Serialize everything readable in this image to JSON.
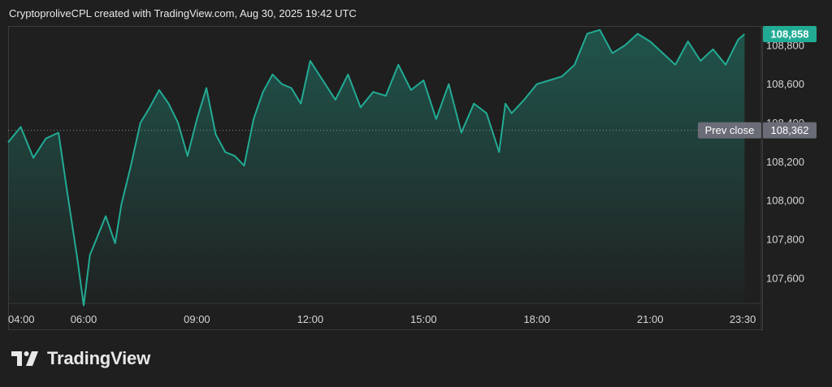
{
  "header": {
    "attribution": "CryptoproliveCPL created with TradingView.com, Aug 30, 2025 19:42 UTC"
  },
  "brand": {
    "name": "TradingView",
    "logo_icon": "tradingview-logo-icon"
  },
  "colors": {
    "background": "#1f1f1f",
    "line": "#22ab94",
    "last_price_badge": "#22ab94",
    "prev_close_badge": "#6a6d78",
    "axis_text": "#d6d6d6"
  },
  "chart_data": {
    "type": "area",
    "x_ticks": [
      "04:00",
      "06:00",
      "09:00",
      "12:00",
      "15:00",
      "18:00",
      "21:00",
      "23:30"
    ],
    "y_ticks": [
      107600,
      107800,
      108000,
      108200,
      108400,
      108600,
      108800
    ],
    "y_tick_labels": [
      "107,600",
      "107,800",
      "108,000",
      "108,200",
      "108,400",
      "108,600",
      "108,800"
    ],
    "ylim": [
      107470,
      108900
    ],
    "xlim": [
      "04:00",
      "23:45"
    ],
    "last_price": {
      "value": 108858,
      "label": "108,858"
    },
    "prev_close": {
      "value": 108362,
      "label": "108,362",
      "title": "Prev close"
    },
    "grid": false,
    "series": [
      {
        "x": [
          "04:00",
          "04:20",
          "04:40",
          "05:00",
          "05:20",
          "05:35",
          "05:50",
          "06:00",
          "06:10",
          "06:20",
          "06:35",
          "06:50",
          "07:00",
          "07:15",
          "07:30",
          "07:45",
          "08:00",
          "08:15",
          "08:30",
          "08:45",
          "09:00",
          "09:15",
          "09:30",
          "09:45",
          "10:00",
          "10:15",
          "10:30",
          "10:45",
          "11:00",
          "11:15",
          "11:30",
          "11:45",
          "12:00",
          "12:20",
          "12:40",
          "13:00",
          "13:20",
          "13:40",
          "14:00",
          "14:20",
          "14:40",
          "15:00",
          "15:20",
          "15:40",
          "16:00",
          "16:20",
          "16:40",
          "17:00",
          "17:10",
          "17:20",
          "17:40",
          "18:00",
          "18:20",
          "18:40",
          "19:00",
          "19:20",
          "19:40",
          "20:00",
          "20:20",
          "20:40",
          "21:00",
          "21:20",
          "21:40",
          "22:00",
          "22:20",
          "22:40",
          "23:00",
          "23:20",
          "23:30"
        ],
        "y": [
          108300,
          108380,
          108220,
          108320,
          108350,
          108020,
          107700,
          107460,
          107720,
          107800,
          107920,
          107780,
          107980,
          108180,
          108400,
          108480,
          108570,
          108500,
          108400,
          108230,
          108420,
          108580,
          108340,
          108250,
          108230,
          108180,
          108420,
          108560,
          108650,
          108600,
          108580,
          108500,
          108720,
          108620,
          108520,
          108650,
          108480,
          108560,
          108540,
          108700,
          108570,
          108620,
          108420,
          108600,
          108350,
          108500,
          108450,
          108250,
          108500,
          108450,
          108520,
          108600,
          108620,
          108640,
          108700,
          108860,
          108880,
          108760,
          108800,
          108860,
          108820,
          108760,
          108700,
          108820,
          108720,
          108780,
          108700,
          108830,
          108858
        ]
      }
    ]
  }
}
